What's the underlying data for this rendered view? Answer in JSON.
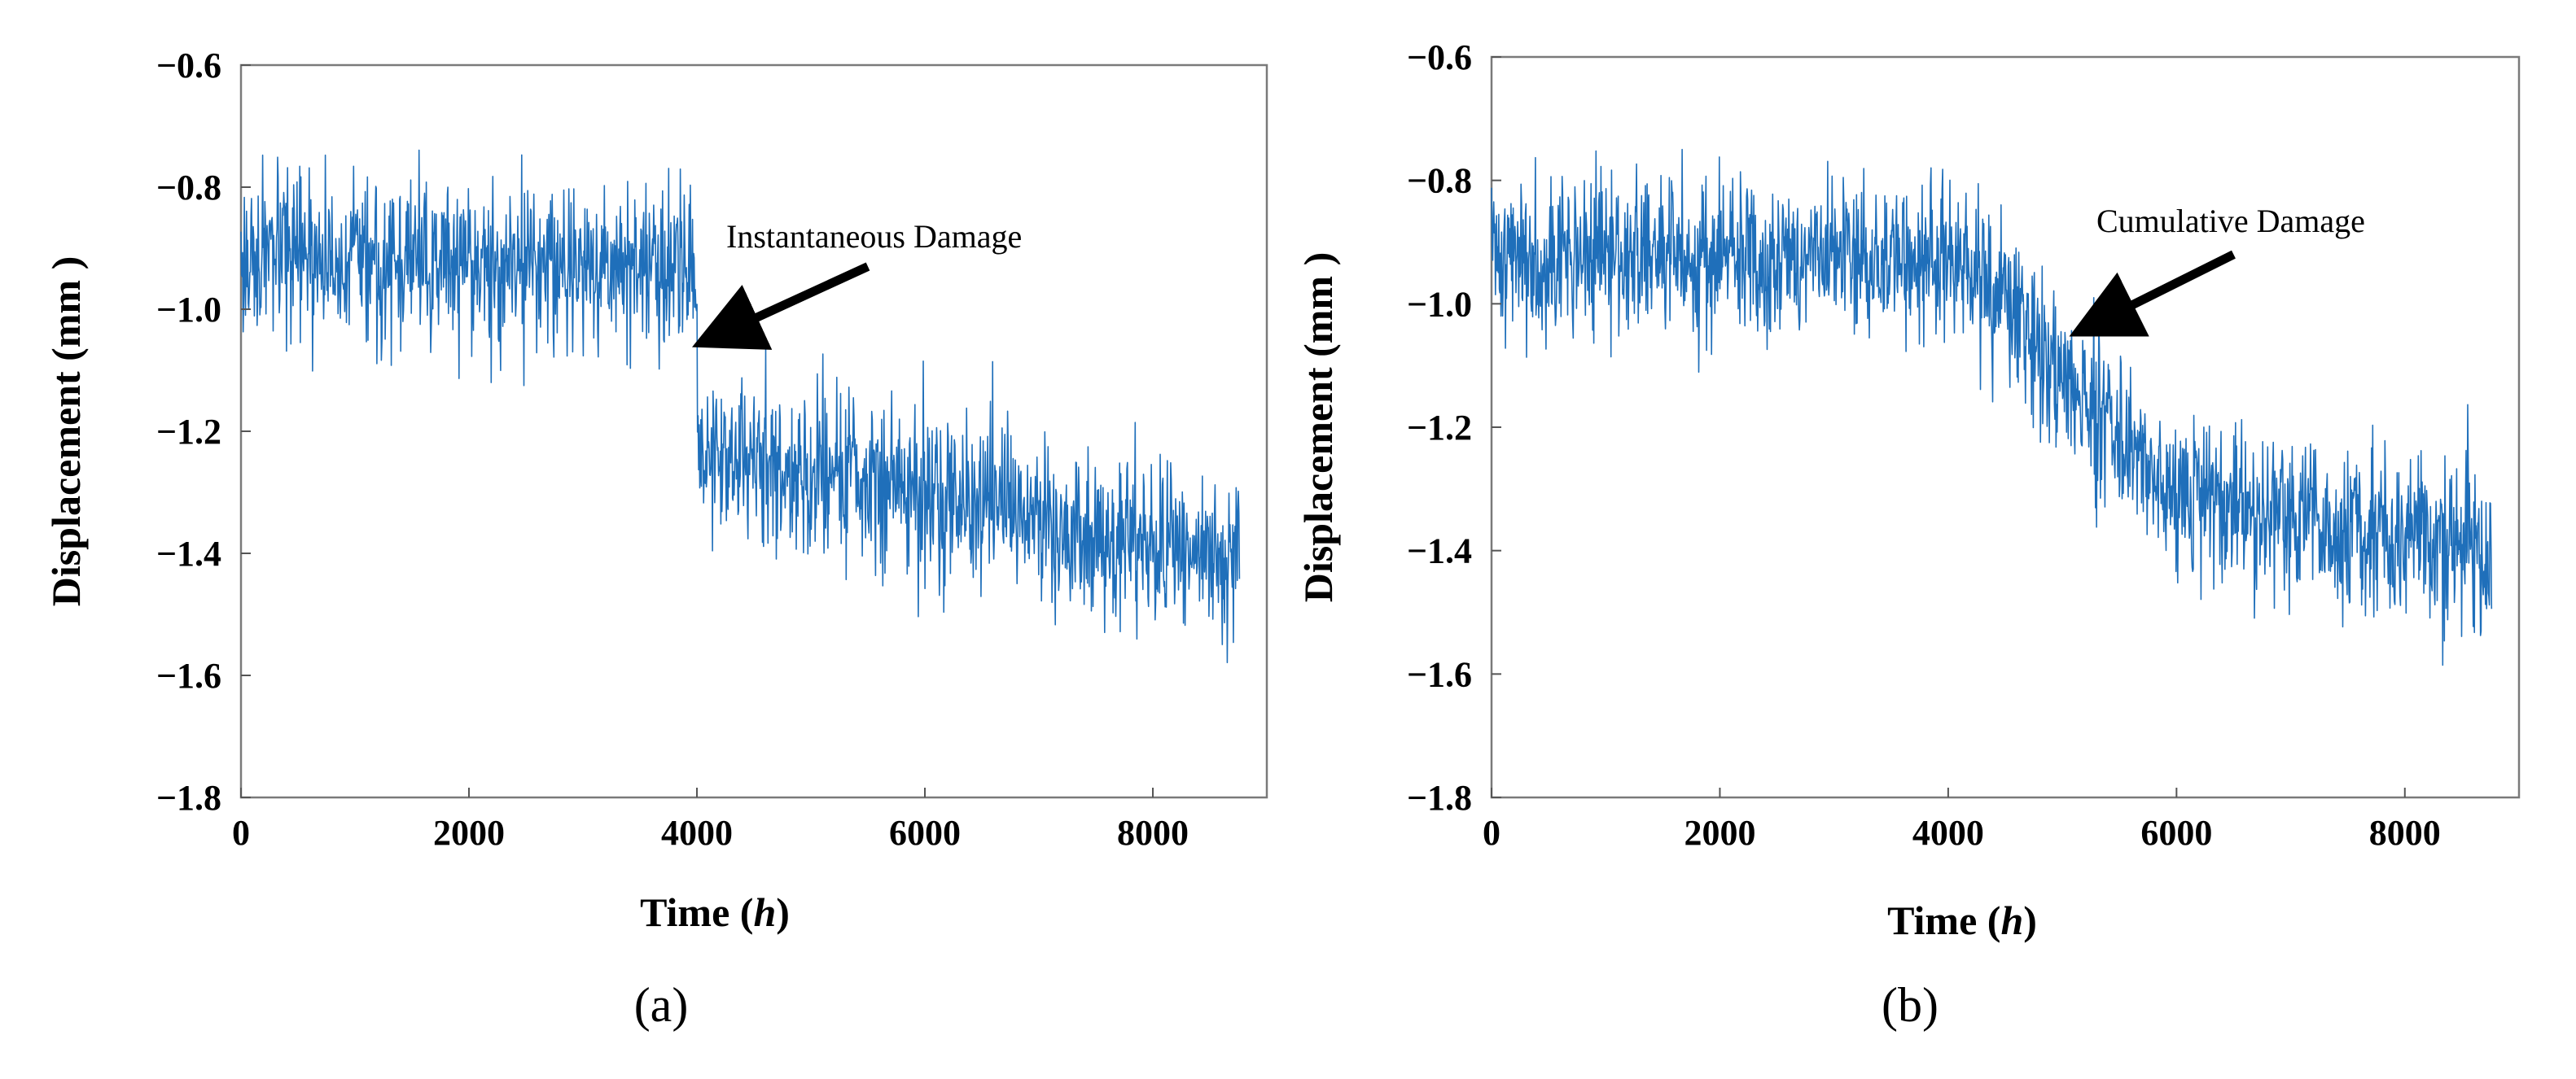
{
  "chart_data": [
    {
      "type": "line",
      "panel_label": "(a)",
      "xlabel": "Time",
      "xlabel_unit": "h",
      "ylabel": "Displacement (mm )",
      "xlim": [
        0,
        9000
      ],
      "ylim": [
        -1.8,
        -0.6
      ],
      "xticks": [
        0,
        2000,
        4000,
        6000,
        8000
      ],
      "xtick_labels": [
        "0",
        "2000",
        "4000",
        "6000",
        "8000"
      ],
      "yticks": [
        -0.6,
        -0.8,
        -1.0,
        -1.2,
        -1.4,
        -1.6,
        -1.8
      ],
      "ytick_labels": [
        "−0.6",
        "−0.8",
        "−1.0",
        "−1.2",
        "−1.4",
        "−1.6",
        "−1.8"
      ],
      "series": [
        {
          "name": "Displacement",
          "color": "#1f6fba",
          "x_start": 0,
          "x_end": 8760,
          "mean_trend": [
            [
              0,
              -0.92
            ],
            [
              4000,
              -0.93
            ],
            [
              4010,
              -1.23
            ],
            [
              6000,
              -1.3
            ],
            [
              8760,
              -1.42
            ]
          ],
          "noise_std": 0.065
        }
      ],
      "annotation": {
        "text": "Instantaneous Damage",
        "arrow_tip": [
          4100,
          -1.05
        ],
        "arrow_tail": [
          5500,
          -0.93
        ]
      }
    },
    {
      "type": "line",
      "panel_label": "(b)",
      "xlabel": "Time",
      "xlabel_unit": "h",
      "ylabel": "Displacement (mm )",
      "xlim": [
        0,
        9000
      ],
      "ylim": [
        -1.8,
        -0.6
      ],
      "xticks": [
        0,
        2000,
        4000,
        6000,
        8000
      ],
      "xtick_labels": [
        "0",
        "2000",
        "4000",
        "6000",
        "8000"
      ],
      "yticks": [
        -0.6,
        -0.8,
        -1.0,
        -1.2,
        -1.4,
        -1.6,
        -1.8
      ],
      "ytick_labels": [
        "−0.6",
        "−0.8",
        "−1.0",
        "−1.2",
        "−1.4",
        "−1.6",
        "−1.8"
      ],
      "series": [
        {
          "name": "Displacement",
          "color": "#1f6fba",
          "x_start": 0,
          "x_end": 8760,
          "mean_trend": [
            [
              0,
              -0.92
            ],
            [
              4000,
              -0.93
            ],
            [
              4500,
              -1.0
            ],
            [
              5000,
              -1.12
            ],
            [
              5500,
              -1.22
            ],
            [
              6000,
              -1.3
            ],
            [
              7000,
              -1.35
            ],
            [
              8760,
              -1.4
            ]
          ],
          "noise_std": 0.065
        }
      ],
      "annotation": {
        "text": "Cumulative Damage",
        "arrow_tip": [
          5200,
          -1.04
        ],
        "arrow_tail": [
          6500,
          -0.92
        ]
      }
    }
  ]
}
